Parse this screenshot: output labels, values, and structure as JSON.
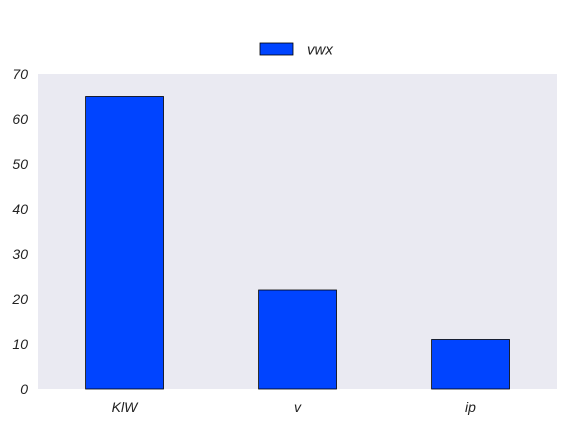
{
  "chart_data": {
    "type": "bar",
    "title": "",
    "xlabel": "",
    "ylabel": "",
    "categories": [
      "KlW",
      "v",
      "ip"
    ],
    "series": [
      {
        "name": "vwx",
        "values": [
          65,
          22,
          11
        ],
        "color": "#0044ff"
      }
    ],
    "ylim": [
      0,
      70
    ],
    "yticks": [
      0,
      10,
      20,
      30,
      40,
      50,
      60,
      70
    ],
    "grid": false,
    "legend_position": "top-center",
    "plot_background": "#eaeaf2",
    "bar_edge_color": "#000000"
  }
}
